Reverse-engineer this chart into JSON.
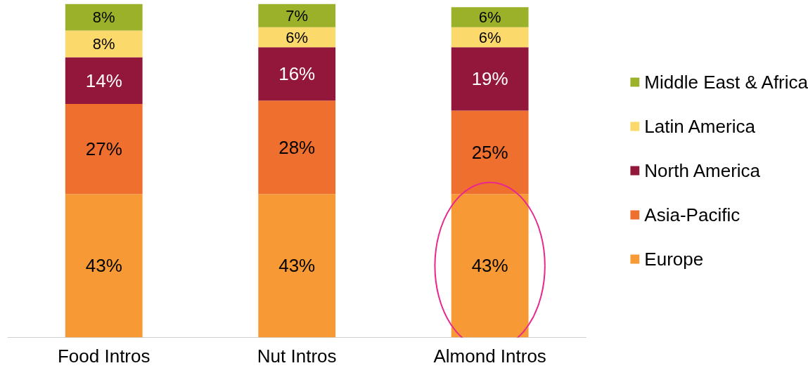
{
  "chart_data": {
    "type": "bar",
    "stacked": true,
    "legend": "right",
    "data_labels": true,
    "grid": false,
    "categories": [
      "Food Intros",
      "Nut Intros",
      "Almond Intros"
    ],
    "series": [
      {
        "name": "Europe",
        "color": "#f79a35",
        "values": [
          43,
          43,
          43
        ],
        "value_labels": [
          "43%",
          "43%",
          "43%"
        ]
      },
      {
        "name": "Asia-Pacific",
        "color": "#ef6f2e",
        "values": [
          27,
          28,
          25
        ],
        "value_labels": [
          "27%",
          "28%",
          "25%"
        ]
      },
      {
        "name": "North America",
        "color": "#93173a",
        "values": [
          14,
          16,
          19
        ],
        "value_labels": [
          "14%",
          "16%",
          "19%"
        ]
      },
      {
        "name": "Latin America",
        "color": "#fcd96b",
        "values": [
          8,
          6,
          6
        ],
        "value_labels": [
          "8%",
          "6%",
          "6%"
        ]
      },
      {
        "name": "Middle East & Africa",
        "color": "#9bb12a",
        "values": [
          8,
          7,
          6
        ],
        "value_labels": [
          "8%",
          "7%",
          "6%"
        ]
      }
    ]
  }
}
